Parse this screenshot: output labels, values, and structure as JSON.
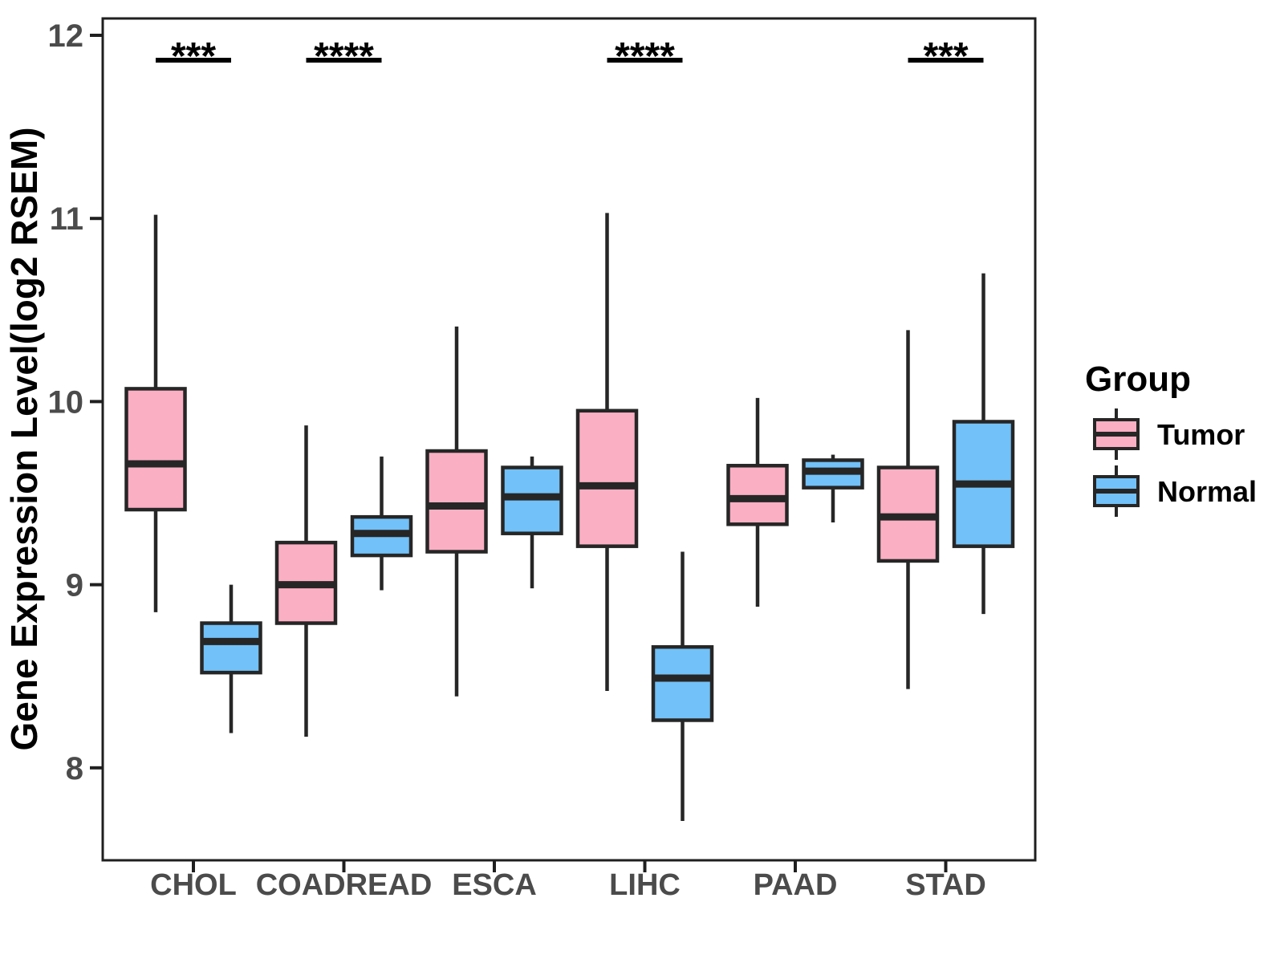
{
  "chart_data": {
    "type": "boxplot",
    "title": "",
    "xlabel": "",
    "ylabel": "Gene Expression Level(log2 RSEM)",
    "categories": [
      "CHOL",
      "COADREAD",
      "ESCA",
      "LIHC",
      "PAAD",
      "STAD"
    ],
    "y_ticks": [
      8,
      9,
      10,
      11,
      12
    ],
    "ylim": [
      7.49,
      12.09
    ],
    "grid": "off",
    "legend": {
      "title": "Group",
      "position": "right",
      "entries": [
        {
          "label": "Tumor",
          "color": "#FBAFC3"
        },
        {
          "label": "Normal",
          "color": "#72C1F8"
        }
      ]
    },
    "series": [
      {
        "name": "Tumor",
        "color": "#FBAFC3",
        "boxes": [
          {
            "category": "CHOL",
            "whisker_low": 8.85,
            "q1": 9.41,
            "median": 9.66,
            "q3": 10.07,
            "whisker_high": 11.02
          },
          {
            "category": "COADREAD",
            "whisker_low": 8.17,
            "q1": 8.79,
            "median": 9.0,
            "q3": 9.23,
            "whisker_high": 9.87
          },
          {
            "category": "ESCA",
            "whisker_low": 8.39,
            "q1": 9.18,
            "median": 9.43,
            "q3": 9.73,
            "whisker_high": 10.41
          },
          {
            "category": "LIHC",
            "whisker_low": 8.42,
            "q1": 9.21,
            "median": 9.54,
            "q3": 9.95,
            "whisker_high": 11.03
          },
          {
            "category": "PAAD",
            "whisker_low": 8.88,
            "q1": 9.33,
            "median": 9.47,
            "q3": 9.65,
            "whisker_high": 10.02
          },
          {
            "category": "STAD",
            "whisker_low": 8.43,
            "q1": 9.13,
            "median": 9.37,
            "q3": 9.64,
            "whisker_high": 10.39
          }
        ]
      },
      {
        "name": "Normal",
        "color": "#72C1F8",
        "boxes": [
          {
            "category": "CHOL",
            "whisker_low": 8.19,
            "q1": 8.52,
            "median": 8.69,
            "q3": 8.79,
            "whisker_high": 9.0
          },
          {
            "category": "COADREAD",
            "whisker_low": 8.97,
            "q1": 9.16,
            "median": 9.28,
            "q3": 9.37,
            "whisker_high": 9.7
          },
          {
            "category": "ESCA",
            "whisker_low": 8.98,
            "q1": 9.28,
            "median": 9.48,
            "q3": 9.64,
            "whisker_high": 9.7
          },
          {
            "category": "LIHC",
            "whisker_low": 7.71,
            "q1": 8.26,
            "median": 8.49,
            "q3": 8.66,
            "whisker_high": 9.18
          },
          {
            "category": "PAAD",
            "whisker_low": 9.34,
            "q1": 9.53,
            "median": 9.62,
            "q3": 9.68,
            "whisker_high": 9.71
          },
          {
            "category": "STAD",
            "whisker_low": 8.84,
            "q1": 9.21,
            "median": 9.55,
            "q3": 9.89,
            "whisker_high": 10.7
          }
        ]
      }
    ],
    "significance": [
      {
        "category": "CHOL",
        "label": "***"
      },
      {
        "category": "COADREAD",
        "label": "****"
      },
      {
        "category": "LIHC",
        "label": "****"
      },
      {
        "category": "STAD",
        "label": "***"
      }
    ],
    "colors": {
      "box_border": "#262626",
      "median_line": "#262626",
      "whisker": "#262626",
      "panel_border": "#1F1F1F",
      "axis_tick_text": "#4B4B4B",
      "axis_title_text": "#000000",
      "significance_text": "#000000",
      "background": "#FFFFFF"
    }
  }
}
